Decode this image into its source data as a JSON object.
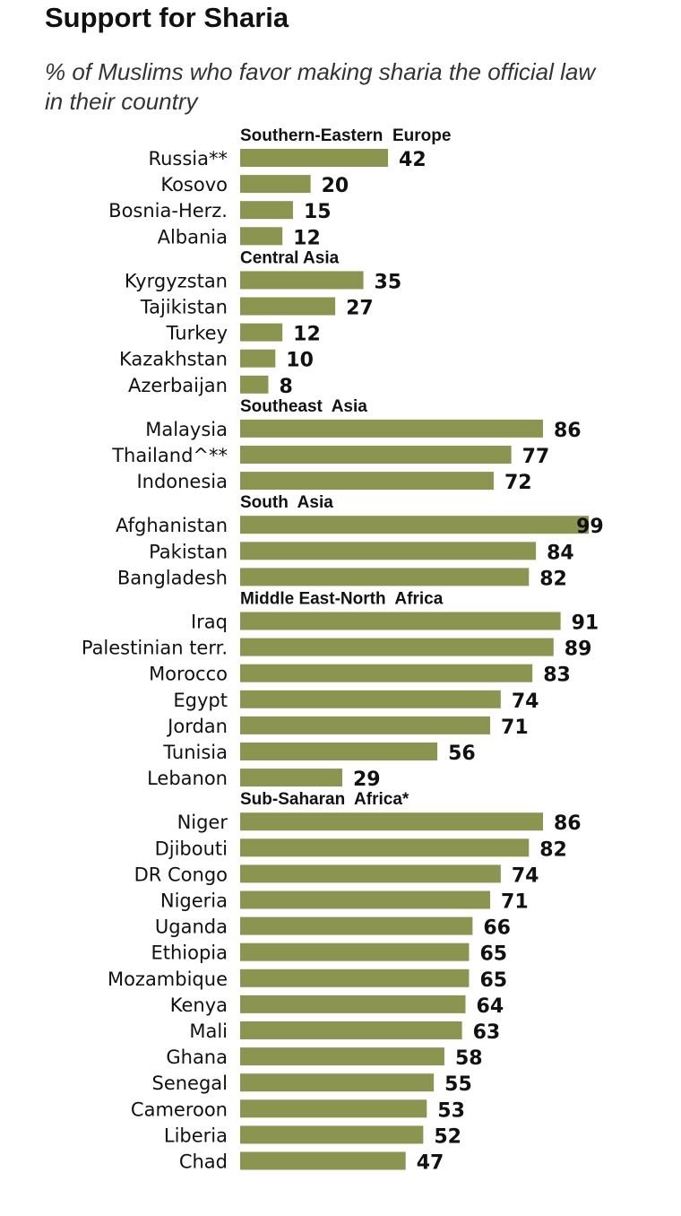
{
  "chart_data": {
    "type": "bar",
    "orientation": "horizontal",
    "title": "Support for Sharia",
    "subtitle": "% of Muslims who favor making sharia the official law in their country",
    "xlim": [
      0,
      100
    ],
    "bar_color": "#8c9550",
    "groups": [
      {
        "name": "Southern-Eastern  Europe",
        "items": [
          {
            "label": "Russia**",
            "value": 42
          },
          {
            "label": "Kosovo",
            "value": 20
          },
          {
            "label": "Bosnia-Herz.",
            "value": 15
          },
          {
            "label": "Albania",
            "value": 12
          }
        ]
      },
      {
        "name": "Central Asia",
        "items": [
          {
            "label": "Kyrgyzstan",
            "value": 35
          },
          {
            "label": "Tajikistan",
            "value": 27
          },
          {
            "label": "Turkey",
            "value": 12
          },
          {
            "label": "Kazakhstan",
            "value": 10
          },
          {
            "label": "Azerbaijan",
            "value": 8
          }
        ]
      },
      {
        "name": "Southeast  Asia",
        "items": [
          {
            "label": "Malaysia",
            "value": 86
          },
          {
            "label": "Thailand^**",
            "value": 77
          },
          {
            "label": "Indonesia",
            "value": 72
          }
        ]
      },
      {
        "name": "South  Asia",
        "items": [
          {
            "label": "Afghanistan",
            "value": 99
          },
          {
            "label": "Pakistan",
            "value": 84
          },
          {
            "label": "Bangladesh",
            "value": 82
          }
        ]
      },
      {
        "name": "Middle East-North  Africa",
        "items": [
          {
            "label": "Iraq",
            "value": 91
          },
          {
            "label": "Palestinian terr.",
            "value": 89
          },
          {
            "label": "Morocco",
            "value": 83
          },
          {
            "label": "Egypt",
            "value": 74
          },
          {
            "label": "Jordan",
            "value": 71
          },
          {
            "label": "Tunisia",
            "value": 56
          },
          {
            "label": "Lebanon",
            "value": 29
          }
        ]
      },
      {
        "name": "Sub-Saharan  Africa*",
        "items": [
          {
            "label": "Niger",
            "value": 86
          },
          {
            "label": "Djibouti",
            "value": 82
          },
          {
            "label": "DR Congo",
            "value": 74
          },
          {
            "label": "Nigeria",
            "value": 71
          },
          {
            "label": "Uganda",
            "value": 66
          },
          {
            "label": "Ethiopia",
            "value": 65
          },
          {
            "label": "Mozambique",
            "value": 65
          },
          {
            "label": "Kenya",
            "value": 64
          },
          {
            "label": "Mali",
            "value": 63
          },
          {
            "label": "Ghana",
            "value": 58
          },
          {
            "label": "Senegal",
            "value": 55
          },
          {
            "label": "Cameroon",
            "value": 53
          },
          {
            "label": "Liberia",
            "value": 52
          },
          {
            "label": "Chad",
            "value": 47
          }
        ]
      }
    ]
  }
}
